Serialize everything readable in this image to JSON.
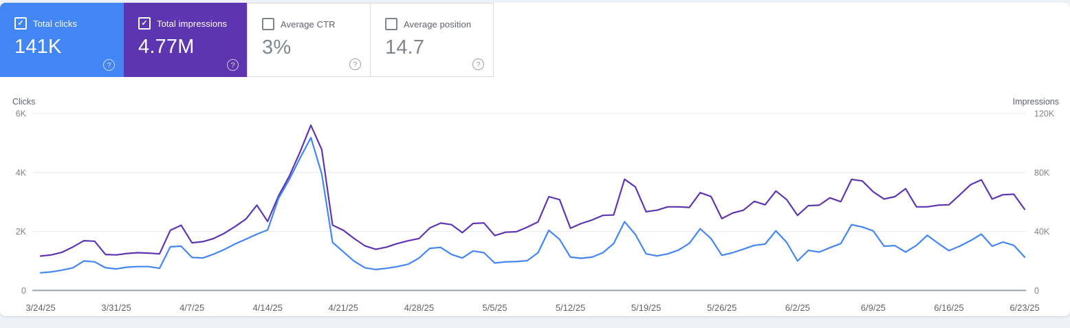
{
  "icons": {
    "check": "✓",
    "help": "?"
  },
  "cards": [
    {
      "label": "Total clicks",
      "value": "141K",
      "checked": true,
      "bg": "#4285f4"
    },
    {
      "label": "Total impressions",
      "value": "4.77M",
      "checked": true,
      "bg": "#5e35b1"
    },
    {
      "label": "Average CTR",
      "value": "3%",
      "checked": false,
      "bg": "#ffffff"
    },
    {
      "label": "Average position",
      "value": "14.7",
      "checked": false,
      "bg": "#ffffff"
    }
  ],
  "chart_data": {
    "type": "line",
    "frequency": "daily",
    "start_date": "3/24/25",
    "end_date": "6/23/25",
    "grid": true,
    "legend_position": "none",
    "x_tick_labels": [
      "3/24/25",
      "3/31/25",
      "4/7/25",
      "4/14/25",
      "4/21/25",
      "4/28/25",
      "5/5/25",
      "5/12/25",
      "5/19/25",
      "5/26/25",
      "6/2/25",
      "6/9/25",
      "6/16/25",
      "6/23/25"
    ],
    "left_axis": {
      "label": "Clicks",
      "ticks": [
        "6K",
        "4K",
        "2K",
        "0"
      ],
      "max": 6000
    },
    "right_axis": {
      "label": "Impressions",
      "ticks": [
        "120K",
        "80K",
        "40K",
        "0"
      ],
      "max": 120000
    },
    "series": [
      {
        "name": "Total impressions",
        "axis": "right",
        "color": "#5e35b1",
        "values": [
          23300,
          24100,
          25900,
          29500,
          33700,
          33400,
          24400,
          24100,
          25100,
          25600,
          25300,
          24800,
          40800,
          44200,
          32300,
          33100,
          35200,
          38800,
          43400,
          48500,
          57800,
          46800,
          64100,
          77500,
          94000,
          112000,
          95500,
          44300,
          40800,
          35200,
          30200,
          27900,
          29400,
          31800,
          33700,
          35200,
          42400,
          45700,
          44600,
          39200,
          45400,
          45800,
          37200,
          39500,
          39800,
          42900,
          46500,
          63600,
          61600,
          42200,
          45400,
          47800,
          50900,
          51200,
          75400,
          70200,
          53400,
          54400,
          56700,
          56700,
          56300,
          66300,
          63700,
          48700,
          52500,
          54400,
          60400,
          58100,
          67400,
          61600,
          50900,
          57500,
          57800,
          62800,
          60200,
          75300,
          74200,
          66900,
          62000,
          63600,
          69000,
          56700,
          56700,
          57800,
          58100,
          64800,
          71700,
          75000,
          62000,
          64900,
          65200,
          55000
        ]
      },
      {
        "name": "Total clicks",
        "axis": "left",
        "color": "#4285f4",
        "values": [
          600,
          630,
          690,
          770,
          1000,
          970,
          770,
          730,
          790,
          810,
          810,
          750,
          1480,
          1500,
          1120,
          1100,
          1230,
          1390,
          1580,
          1740,
          1910,
          2050,
          3120,
          3760,
          4490,
          5180,
          3950,
          1630,
          1310,
          990,
          770,
          710,
          750,
          810,
          890,
          1100,
          1430,
          1460,
          1220,
          1100,
          1340,
          1280,
          930,
          970,
          980,
          1010,
          1280,
          2040,
          1730,
          1130,
          1090,
          1130,
          1280,
          1590,
          2330,
          1900,
          1240,
          1170,
          1240,
          1370,
          1600,
          2090,
          1760,
          1190,
          1280,
          1400,
          1530,
          1570,
          2020,
          1630,
          1000,
          1360,
          1300,
          1450,
          1590,
          2230,
          2150,
          2020,
          1500,
          1520,
          1300,
          1530,
          1870,
          1600,
          1350,
          1500,
          1690,
          1910,
          1500,
          1640,
          1530,
          1130
        ]
      }
    ]
  },
  "colors": {
    "page_background": "#eef1f7",
    "panel_background": "#ffffff",
    "clicks_accent": "#4285f4",
    "impressions_accent": "#5e35b1",
    "gridline": "#e9eaee",
    "axis_line": "#9aa0a6"
  }
}
